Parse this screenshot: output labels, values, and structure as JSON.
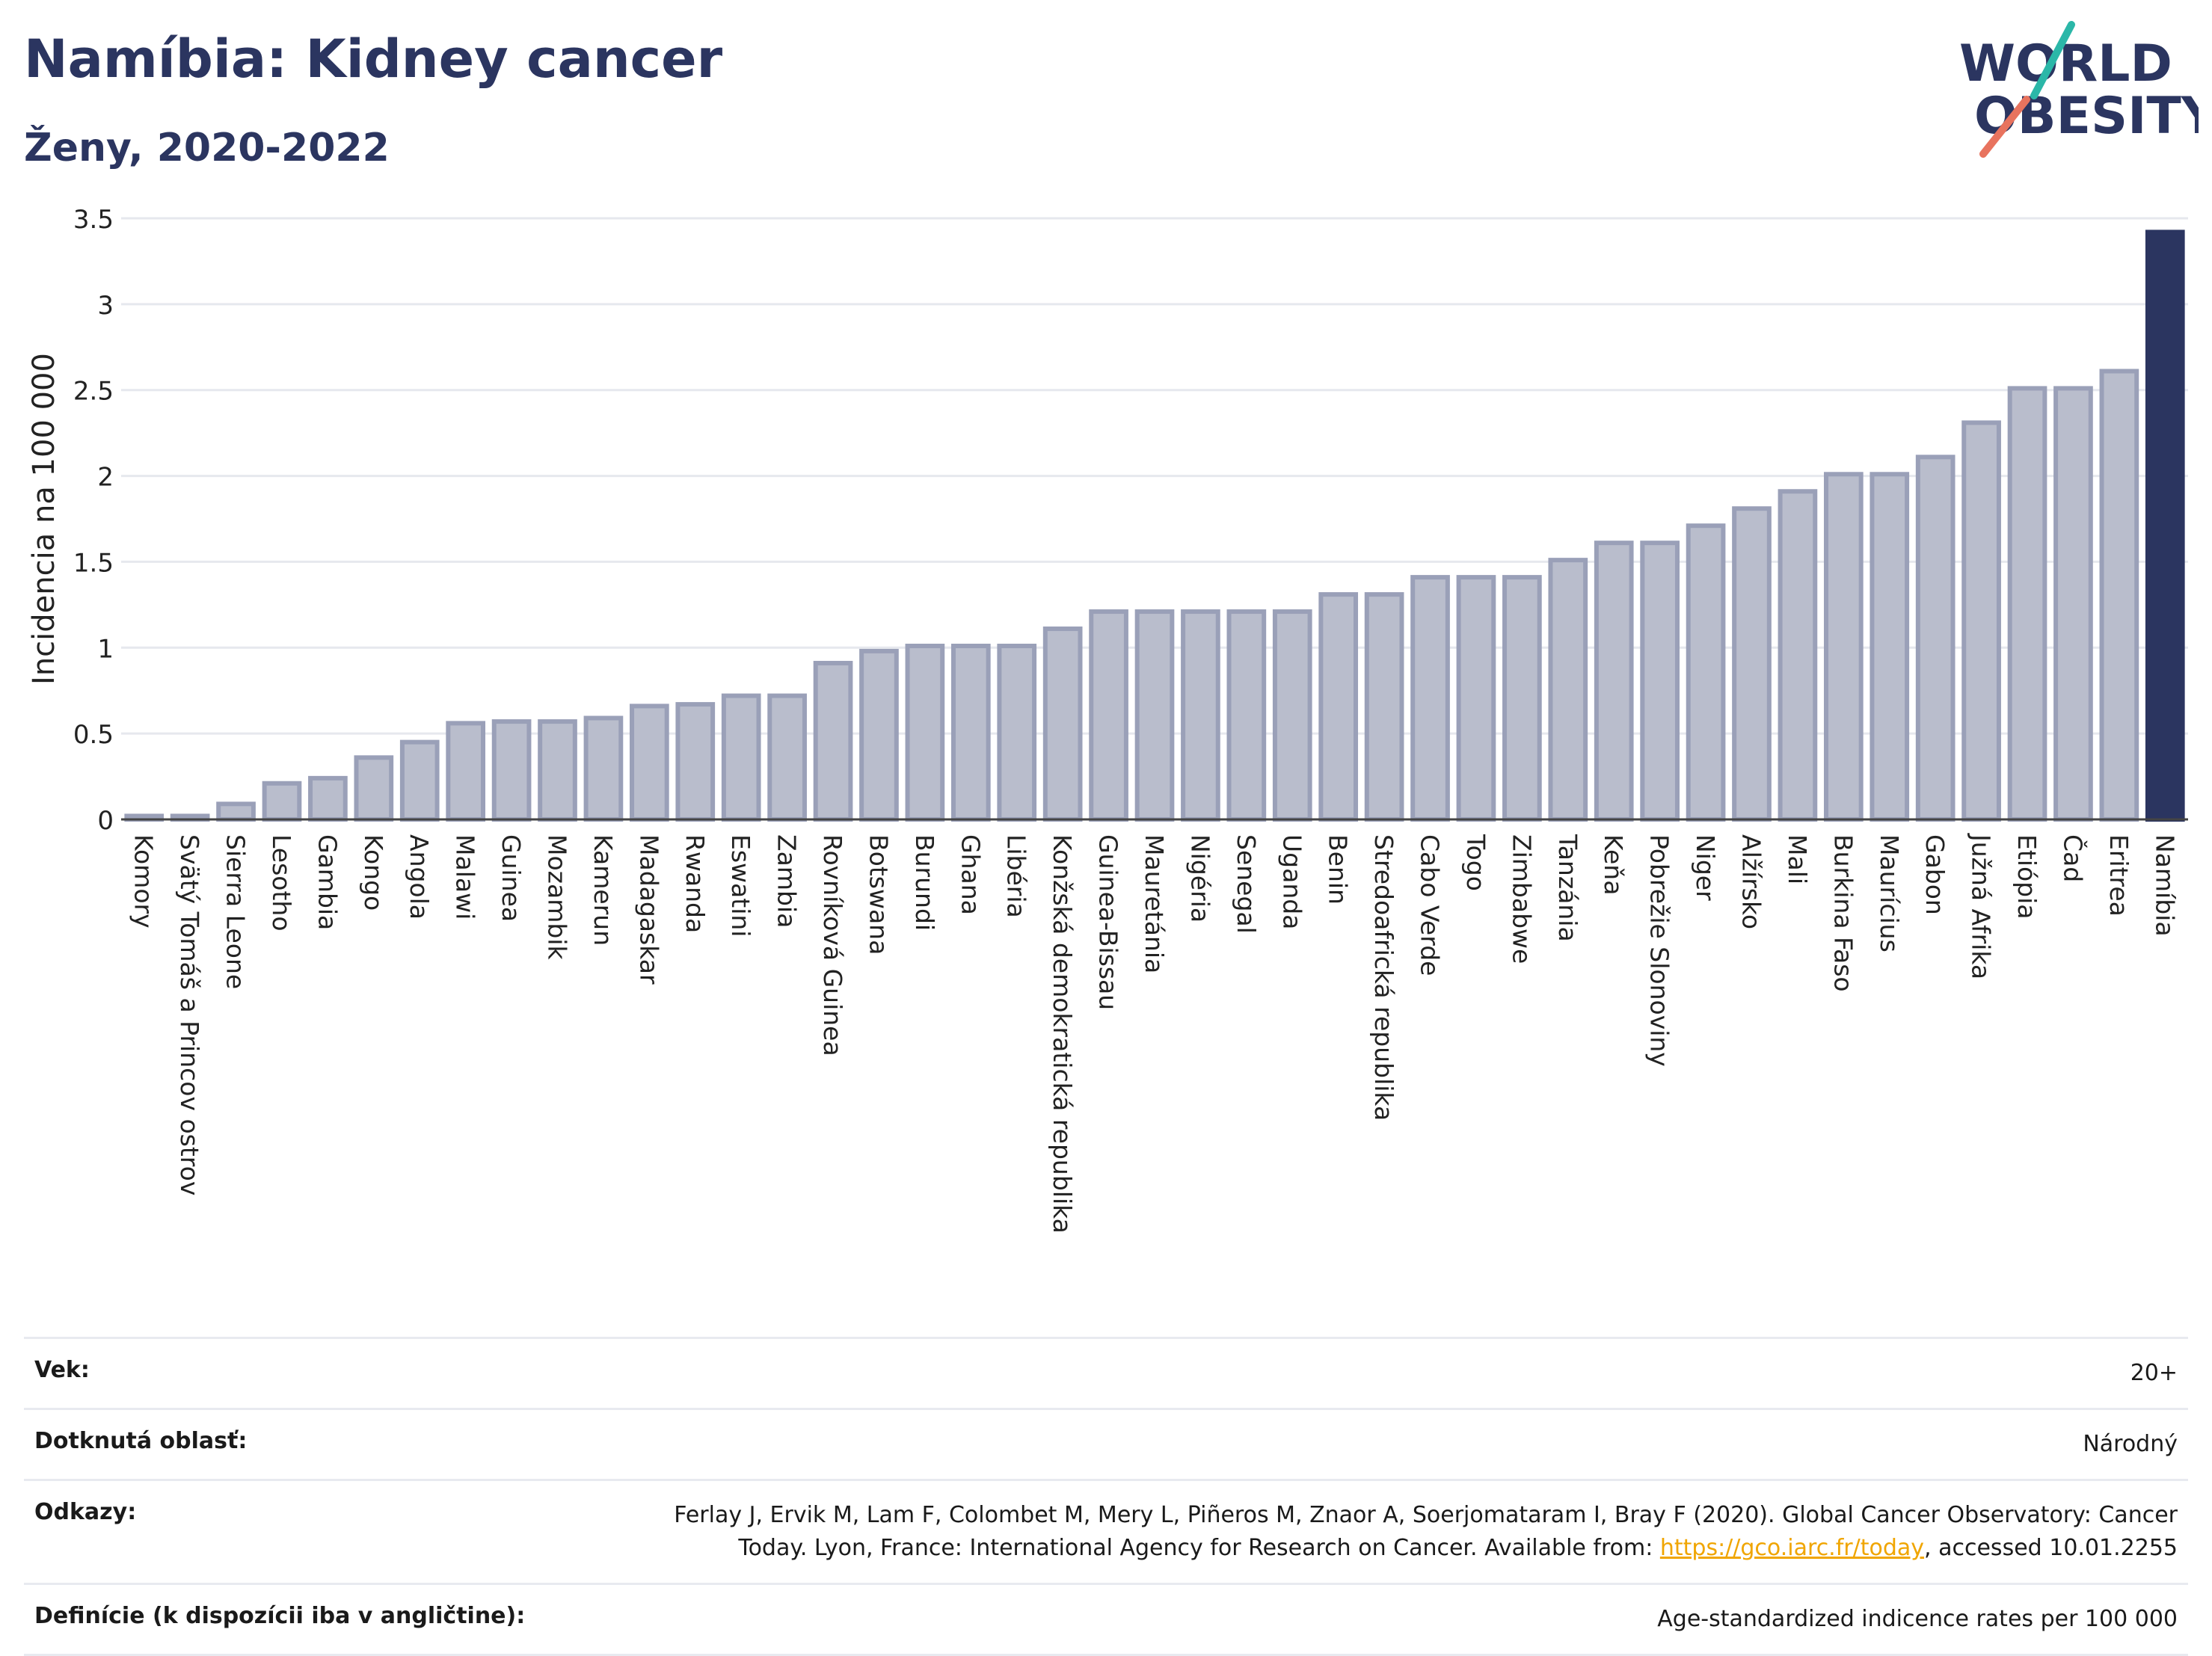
{
  "title": "Namíbia: Kidney cancer",
  "subtitle": "Ženy, 2020-2022",
  "logo": {
    "line1": "WORLD",
    "line2": "OBESITY"
  },
  "colors": {
    "bar": "#b9bdcc",
    "bar_stroke": "#9aa0b8",
    "highlight": "#2b3560",
    "grid": "#e6e8ee",
    "axis_text": "#222222"
  },
  "chart_data": {
    "type": "bar",
    "ylabel": "Incidencia na 100 000",
    "ylim": [
      0,
      3.5
    ],
    "yticks": [
      "0",
      "0.5",
      "1",
      "1.5",
      "2",
      "2.5",
      "3",
      "3.5"
    ],
    "ytick_values": [
      0,
      0.5,
      1,
      1.5,
      2,
      2.5,
      3,
      3.5
    ],
    "highlight": "Namíbia",
    "categories": [
      "Komory",
      "Svätý Tomáš a Princov ostrov",
      "Sierra Leone",
      "Lesotho",
      "Gambia",
      "Kongo",
      "Angola",
      "Malawi",
      "Guinea",
      "Mozambik",
      "Kamerun",
      "Madagaskar",
      "Rwanda",
      "Eswatini",
      "Zambia",
      "Rovníková Guinea",
      "Botswana",
      "Burundi",
      "Ghana",
      "Libéria",
      "Konžská demokratická republika",
      "Guinea-Bissau",
      "Mauretánia",
      "Nigéria",
      "Senegal",
      "Uganda",
      "Benin",
      "Stredoafrická republika",
      "Cabo Verde",
      "Togo",
      "Zimbabwe",
      "Tanzánia",
      "Keňa",
      "Pobrežie Slonoviny",
      "Niger",
      "Alžírsko",
      "Mali",
      "Burkina Faso",
      "Maurícius",
      "Gabon",
      "Južná Afrika",
      "Etiópia",
      "Čad",
      "Eritrea",
      "Namíbia"
    ],
    "values": [
      0.02,
      0.02,
      0.09,
      0.21,
      0.24,
      0.36,
      0.45,
      0.56,
      0.57,
      0.57,
      0.59,
      0.66,
      0.67,
      0.72,
      0.72,
      0.91,
      0.98,
      1.01,
      1.01,
      1.01,
      1.11,
      1.21,
      1.21,
      1.21,
      1.21,
      1.21,
      1.31,
      1.31,
      1.41,
      1.41,
      1.41,
      1.51,
      1.61,
      1.61,
      1.71,
      1.81,
      1.91,
      2.01,
      2.01,
      2.11,
      2.31,
      2.51,
      2.51,
      2.61,
      3.42
    ]
  },
  "info": {
    "age_label": "Vek:",
    "age_value": "20+",
    "area_label": "Dotknutá oblasť:",
    "area_value": "Národný",
    "refs_label": "Odkazy:",
    "refs_text": "Ferlay J, Ervik M, Lam F, Colombet M, Mery L, Piñeros M, Znaor A, Soerjomataram I, Bray F (2020). Global Cancer Observatory: Cancer Today. Lyon, France: International Agency for Research on Cancer. Available from:",
    "refs_link": "https://gco.iarc.fr/today",
    "refs_after": ", accessed 10.01.2255",
    "defs_label": "Definície (k dispozícii iba v angličtine):",
    "defs_value": "Age-standardized indicence rates per 100 000"
  }
}
